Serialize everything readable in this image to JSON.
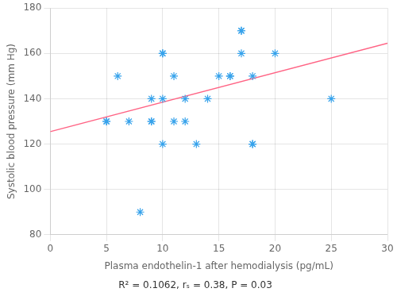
{
  "chart_data": {
    "type": "scatter",
    "xlabel": "Plasma endothelin-1 after hemodialysis (pg/mL)",
    "ylabel": "Systolic blood pressure (mm Hg)",
    "annotation": "R² = 0.1062, rₛ = 0.38, P = 0.03",
    "series": [
      {
        "type": "scatter",
        "marker": "asterisk",
        "x": [
          5,
          5,
          6,
          7,
          8,
          9,
          9,
          9,
          10,
          10,
          10,
          10,
          11,
          11,
          12,
          12,
          13,
          14,
          15,
          16,
          16,
          17,
          17,
          17,
          18,
          18,
          18,
          20,
          25
        ],
        "values": [
          130,
          130,
          150,
          130,
          90,
          130,
          130,
          140,
          120,
          160,
          160,
          140,
          150,
          130,
          140,
          130,
          120,
          140,
          150,
          150,
          150,
          170,
          170,
          160,
          120,
          120,
          150,
          160,
          140
        ]
      },
      {
        "type": "line",
        "line_style": "solid",
        "x": [
          0,
          30
        ],
        "values": [
          125.5,
          164.5
        ]
      }
    ],
    "xlim": [
      0,
      30
    ],
    "ylim": [
      80,
      180
    ],
    "xticks": [
      0,
      5,
      10,
      15,
      20,
      25,
      30
    ],
    "yticks": [
      80,
      100,
      120,
      140,
      160,
      180
    ],
    "grid": true
  }
}
